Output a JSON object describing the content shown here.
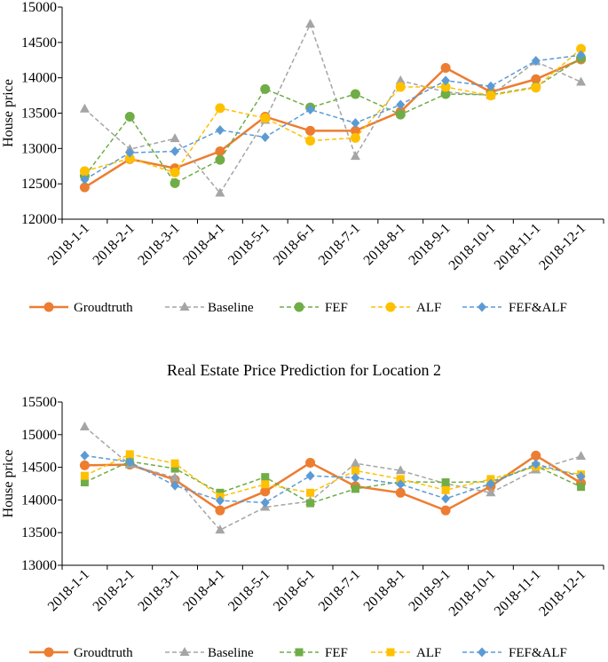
{
  "chart_data": [
    {
      "type": "line",
      "title": "",
      "xlabel": "",
      "ylabel": "House price",
      "ylim": [
        12000,
        15000
      ],
      "yticks": [
        "12000",
        "12500",
        "13000",
        "13500",
        "14000",
        "14500",
        "15000"
      ],
      "grid": false,
      "legend_position": "bottom",
      "categories": [
        "2018-1-1",
        "2018-2-1",
        "2018-3-1",
        "2018-4-1",
        "2018-5-1",
        "2018-6-1",
        "2018-7-1",
        "2018-8-1",
        "2018-9-1",
        "2018-10-1",
        "2018-11-1",
        "2018-12-1"
      ],
      "series": [
        {
          "name": "Groudtruth",
          "color": "#ED7D31",
          "dashed": false,
          "marker": "circle",
          "values": [
            12450,
            12850,
            12720,
            12960,
            13450,
            13250,
            13250,
            13520,
            14140,
            13800,
            13980,
            14260
          ]
        },
        {
          "name": "Baseline",
          "color": "#A5A5A5",
          "dashed": true,
          "marker": "triangle",
          "values": [
            13560,
            12990,
            13140,
            12370,
            13400,
            14760,
            12890,
            13960,
            13800,
            13750,
            14230,
            13940
          ]
        },
        {
          "name": "FEF",
          "color": "#70AD47",
          "dashed": true,
          "marker": "circle",
          "values": [
            12610,
            13450,
            12510,
            12840,
            13840,
            13580,
            13770,
            13480,
            13770,
            13760,
            13870,
            14280
          ]
        },
        {
          "name": "ALF",
          "color": "#FFC000",
          "dashed": true,
          "marker": "circle",
          "values": [
            12680,
            12860,
            12660,
            13570,
            13430,
            13110,
            13150,
            13870,
            13870,
            13750,
            13860,
            14410
          ]
        },
        {
          "name": "FEF&ALF",
          "color": "#5B9BD5",
          "dashed": true,
          "marker": "diamond",
          "values": [
            12560,
            12940,
            12960,
            13260,
            13160,
            13550,
            13360,
            13620,
            13960,
            13880,
            14240,
            14320
          ]
        }
      ]
    },
    {
      "type": "line",
      "title": "Real Estate Price Prediction for Location 2",
      "xlabel": "",
      "ylabel": "House price",
      "ylim": [
        13000,
        15500
      ],
      "yticks": [
        "13000",
        "13500",
        "14000",
        "14500",
        "15000",
        "15500"
      ],
      "grid": false,
      "legend_position": "bottom",
      "categories": [
        "2018-1-1",
        "2018-2-1",
        "2018-3-1",
        "2018-4-1",
        "2018-5-1",
        "2018-6-1",
        "2018-7-1",
        "2018-8-1",
        "2018-9-1",
        "2018-10-1",
        "2018-11-1",
        "2018-12-1"
      ],
      "series": [
        {
          "name": "Groudtruth",
          "color": "#ED7D31",
          "dashed": false,
          "marker": "circle",
          "values": [
            14530,
            14540,
            14310,
            13840,
            14130,
            14570,
            14210,
            14110,
            13840,
            14210,
            14680,
            14260
          ]
        },
        {
          "name": "Baseline",
          "color": "#A5A5A5",
          "dashed": true,
          "marker": "triangle",
          "values": [
            15120,
            14540,
            14340,
            13540,
            13890,
            13980,
            14560,
            14450,
            14250,
            14110,
            14460,
            14670
          ]
        },
        {
          "name": "FEF",
          "color": "#70AD47",
          "dashed": true,
          "marker": "square",
          "values": [
            14270,
            14590,
            14480,
            14110,
            14350,
            13950,
            14170,
            14280,
            14270,
            14280,
            14520,
            14200
          ]
        },
        {
          "name": "ALF",
          "color": "#FFC000",
          "dashed": true,
          "marker": "square",
          "values": [
            14370,
            14700,
            14560,
            14050,
            14240,
            14110,
            14450,
            14320,
            14150,
            14320,
            14510,
            14390
          ]
        },
        {
          "name": "FEF&ALF",
          "color": "#5B9BD5",
          "dashed": true,
          "marker": "diamond",
          "values": [
            14680,
            14580,
            14220,
            13990,
            13960,
            14370,
            14340,
            14240,
            14020,
            14250,
            14550,
            14360
          ]
        }
      ]
    }
  ]
}
